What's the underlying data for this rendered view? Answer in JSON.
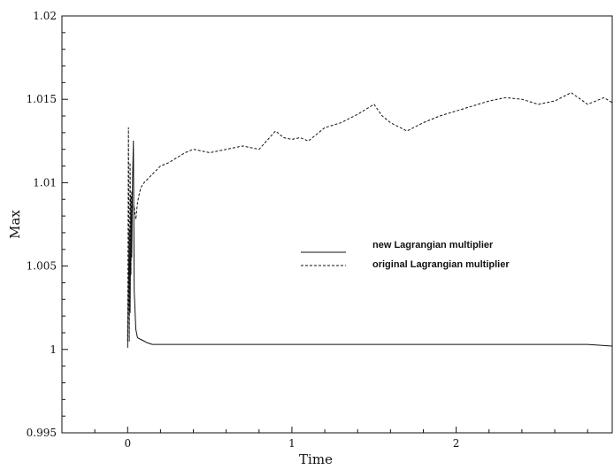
{
  "chart_data": {
    "type": "line",
    "title": "",
    "xlabel": "Time",
    "ylabel": "Max",
    "xlim": [
      -0.4,
      2.95
    ],
    "ylim": [
      0.995,
      1.02
    ],
    "x_ticks": [
      {
        "value": 0,
        "label": "0"
      },
      {
        "value": 1,
        "label": "1"
      },
      {
        "value": 2,
        "label": "2"
      }
    ],
    "y_ticks": [
      {
        "value": 0.995,
        "label": "0.995"
      },
      {
        "value": 1.0,
        "label": "1"
      },
      {
        "value": 1.005,
        "label": "1.005"
      },
      {
        "value": 1.01,
        "label": "1.01"
      },
      {
        "value": 1.015,
        "label": "1.015"
      },
      {
        "value": 1.02,
        "label": "1.02"
      }
    ],
    "grid": false,
    "legend_position": "center-right",
    "series": [
      {
        "name": "new Lagrangian multiplier",
        "style": "solid",
        "color": "#111111",
        "x": [
          0,
          0.005,
          0.01,
          0.015,
          0.02,
          0.025,
          0.03,
          0.035,
          0.04,
          0.05,
          0.06,
          0.08,
          0.1,
          0.12,
          0.15,
          0.2,
          0.3,
          0.4,
          0.5,
          0.6,
          0.7,
          0.8,
          0.9,
          1.0,
          1.1,
          1.2,
          1.3,
          1.4,
          1.5,
          1.6,
          1.7,
          1.8,
          1.9,
          2.0,
          2.2,
          2.4,
          2.6,
          2.8,
          2.95
        ],
        "y": [
          1.0001,
          1.0035,
          1.0072,
          1.0022,
          1.0092,
          1.0055,
          1.0103,
          1.0125,
          1.0035,
          1.0012,
          1.0007,
          1.0006,
          1.0005,
          1.0004,
          1.0003,
          1.0003,
          1.0003,
          1.0003,
          1.0003,
          1.0003,
          1.0003,
          1.0003,
          1.0003,
          1.0003,
          1.0003,
          1.0003,
          1.0003,
          1.0003,
          1.0003,
          1.0003,
          1.0003,
          1.0003,
          1.0003,
          1.0003,
          1.0003,
          1.0003,
          1.0003,
          1.0003,
          1.0002
        ]
      },
      {
        "name": "original Lagrangian multiplier",
        "style": "dashed",
        "color": "#111111",
        "x": [
          0,
          0.005,
          0.01,
          0.015,
          0.02,
          0.025,
          0.03,
          0.04,
          0.05,
          0.06,
          0.07,
          0.08,
          0.1,
          0.15,
          0.2,
          0.25,
          0.3,
          0.35,
          0.4,
          0.5,
          0.6,
          0.7,
          0.8,
          0.9,
          0.95,
          1.0,
          1.05,
          1.1,
          1.2,
          1.3,
          1.4,
          1.5,
          1.55,
          1.6,
          1.7,
          1.8,
          1.9,
          2.0,
          2.1,
          2.2,
          2.3,
          2.4,
          2.5,
          2.6,
          2.7,
          2.8,
          2.9,
          2.95
        ],
        "y": [
          1.0005,
          1.0133,
          1.0005,
          1.0112,
          1.0045,
          1.0095,
          1.0085,
          1.0085,
          1.0078,
          1.0088,
          1.0093,
          1.0097,
          1.01,
          1.0105,
          1.011,
          1.0112,
          1.0115,
          1.0118,
          1.012,
          1.0118,
          1.012,
          1.0122,
          1.012,
          1.0131,
          1.0127,
          1.0126,
          1.0127,
          1.0125,
          1.0133,
          1.0136,
          1.0141,
          1.0147,
          1.014,
          1.0136,
          1.0131,
          1.0136,
          1.014,
          1.0143,
          1.0146,
          1.0149,
          1.0151,
          1.015,
          1.0147,
          1.0149,
          1.0154,
          1.0147,
          1.0151,
          1.0148
        ]
      }
    ]
  }
}
